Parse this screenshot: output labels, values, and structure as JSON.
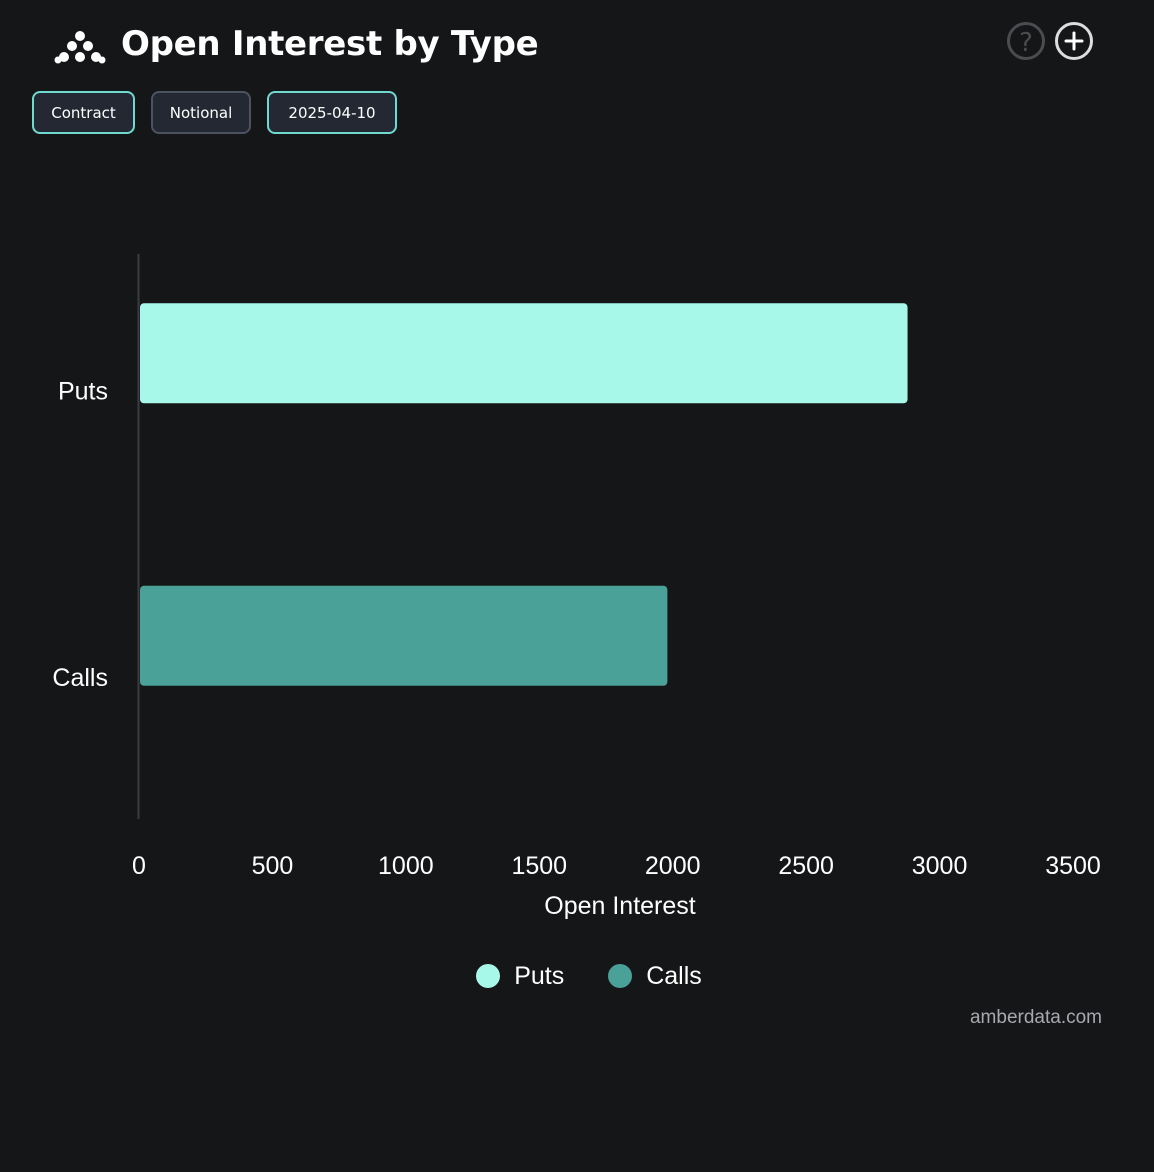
{
  "header": {
    "title": "Open Interest by Type",
    "logo_icon": "amberdata-logo-icon",
    "help_icon": "help-circle-icon",
    "add_icon": "plus-circle-icon"
  },
  "filters": {
    "contract_label": "Contract",
    "notional_label": "Notional",
    "date_label": "2025-04-10"
  },
  "chart_data": {
    "type": "bar",
    "orientation": "horizontal",
    "categories": [
      "Puts",
      "Calls"
    ],
    "values": [
      2880,
      1980
    ],
    "colors": [
      "#a8f8ea",
      "#49a198"
    ],
    "xlabel": "Open Interest",
    "ylabel": "",
    "xlim": [
      0,
      3500
    ],
    "xticks": [
      0,
      500,
      1000,
      1500,
      2000,
      2500,
      3000,
      3500
    ],
    "grid": false,
    "legend_position": "bottom"
  },
  "legend": {
    "items": [
      {
        "label": "Puts",
        "color": "#a8f8ea"
      },
      {
        "label": "Calls",
        "color": "#49a198"
      }
    ]
  },
  "footer": {
    "source": "amberdata.com"
  }
}
